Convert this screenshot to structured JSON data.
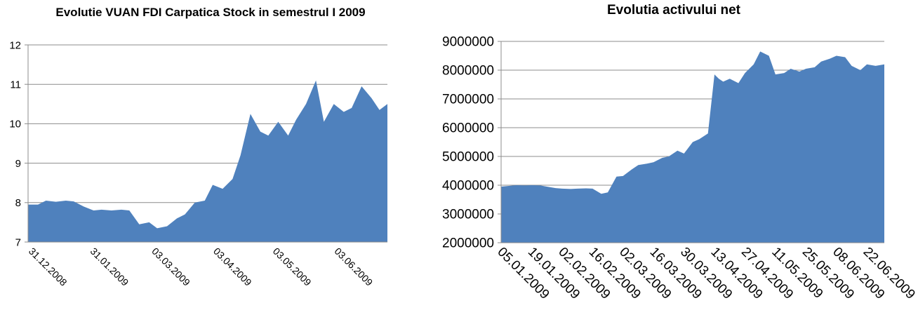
{
  "chart_data": [
    {
      "type": "area",
      "title": "Evolutie VUAN FDI Carpatica Stock in semestrul I 2009",
      "xlabel": "",
      "ylabel": "",
      "ylim": [
        7,
        12
      ],
      "yticks": [
        7,
        8,
        9,
        10,
        11,
        12
      ],
      "xtick_labels": [
        "31.12.2008",
        "31.01.2009",
        "03.03.2009",
        "03.04.2009",
        "03.05.2009",
        "03.06.2009"
      ],
      "grid": "horizontal",
      "legend": "none",
      "color": "#4F81BD",
      "x_range": [
        "31.12.2008",
        "30.06.2009"
      ],
      "x": [
        "31.12.2008",
        "05.01.2009",
        "09.01.2009",
        "14.01.2009",
        "19.01.2009",
        "23.01.2009",
        "28.01.2009",
        "02.02.2009",
        "06.02.2009",
        "11.02.2009",
        "16.02.2009",
        "20.02.2009",
        "25.02.2009",
        "02.03.2009",
        "06.03.2009",
        "11.03.2009",
        "16.03.2009",
        "20.03.2009",
        "25.03.2009",
        "30.03.2009",
        "03.04.2009",
        "08.04.2009",
        "13.04.2009",
        "17.04.2009",
        "22.04.2009",
        "27.04.2009",
        "01.05.2009",
        "06.05.2009",
        "11.05.2009",
        "15.05.2009",
        "20.05.2009",
        "25.05.2009",
        "29.05.2009",
        "03.06.2009",
        "08.06.2009",
        "12.06.2009",
        "17.06.2009",
        "22.06.2009",
        "26.06.2009",
        "30.06.2009"
      ],
      "values": [
        7.95,
        7.95,
        8.05,
        8.02,
        8.05,
        8.03,
        7.9,
        7.8,
        7.82,
        7.8,
        7.82,
        7.8,
        7.45,
        7.5,
        7.35,
        7.4,
        7.6,
        7.7,
        8.0,
        8.05,
        8.45,
        8.35,
        8.6,
        9.2,
        10.25,
        9.8,
        9.7,
        10.05,
        9.7,
        10.1,
        10.5,
        11.1,
        10.05,
        10.5,
        10.3,
        10.4,
        10.95,
        10.65,
        10.35,
        10.5
      ]
    },
    {
      "type": "area",
      "title": "Evolutia activului net",
      "xlabel": "",
      "ylabel": "",
      "ylim": [
        2000000,
        9000000
      ],
      "yticks": [
        2000000,
        3000000,
        4000000,
        5000000,
        6000000,
        7000000,
        8000000,
        9000000
      ],
      "xtick_labels": [
        "05.01.2009",
        "19.01.2009",
        "02.02.2009",
        "16.02.2009",
        "02.03.2009",
        "16.03.2009",
        "30.03.2009",
        "13.04.2009",
        "27.04.2009",
        "11.05.2009",
        "25.05.2009",
        "08.06.2009",
        "22.06.2009"
      ],
      "grid": "horizontal",
      "legend": "none",
      "color": "#4F81BD",
      "x_range": [
        "05.01.2009",
        "30.06.2009"
      ],
      "x": [
        "05.01.2009",
        "09.01.2009",
        "12.01.2009",
        "16.01.2009",
        "19.01.2009",
        "23.01.2009",
        "26.01.2009",
        "30.01.2009",
        "02.02.2009",
        "06.02.2009",
        "09.02.2009",
        "13.02.2009",
        "16.02.2009",
        "20.02.2009",
        "23.02.2009",
        "27.02.2009",
        "02.03.2009",
        "06.03.2009",
        "09.03.2009",
        "13.03.2009",
        "16.03.2009",
        "20.03.2009",
        "23.03.2009",
        "27.03.2009",
        "30.03.2009",
        "03.04.2009",
        "06.04.2009",
        "10.04.2009",
        "13.04.2009",
        "15.04.2009",
        "17.04.2009",
        "20.04.2009",
        "24.04.2009",
        "27.04.2009",
        "01.05.2009",
        "04.05.2009",
        "08.05.2009",
        "11.05.2009",
        "15.05.2009",
        "18.05.2009",
        "22.05.2009",
        "25.05.2009",
        "29.05.2009",
        "01.06.2009",
        "05.06.2009",
        "08.06.2009",
        "12.06.2009",
        "15.06.2009",
        "19.06.2009",
        "22.06.2009",
        "26.06.2009",
        "30.06.2009"
      ],
      "values": [
        3950000,
        3980000,
        4000000,
        3990000,
        4000000,
        3990000,
        3950000,
        3900000,
        3880000,
        3870000,
        3880000,
        3890000,
        3880000,
        3700000,
        3750000,
        4300000,
        4320000,
        4550000,
        4700000,
        4750000,
        4800000,
        4950000,
        5000000,
        5200000,
        5100000,
        5500000,
        5600000,
        5800000,
        7850000,
        7700000,
        7600000,
        7700000,
        7550000,
        7900000,
        8200000,
        8650000,
        8500000,
        7850000,
        7900000,
        8050000,
        7950000,
        8050000,
        8100000,
        8300000,
        8400000,
        8500000,
        8450000,
        8150000,
        8000000,
        8200000,
        8150000,
        8200000
      ]
    }
  ]
}
